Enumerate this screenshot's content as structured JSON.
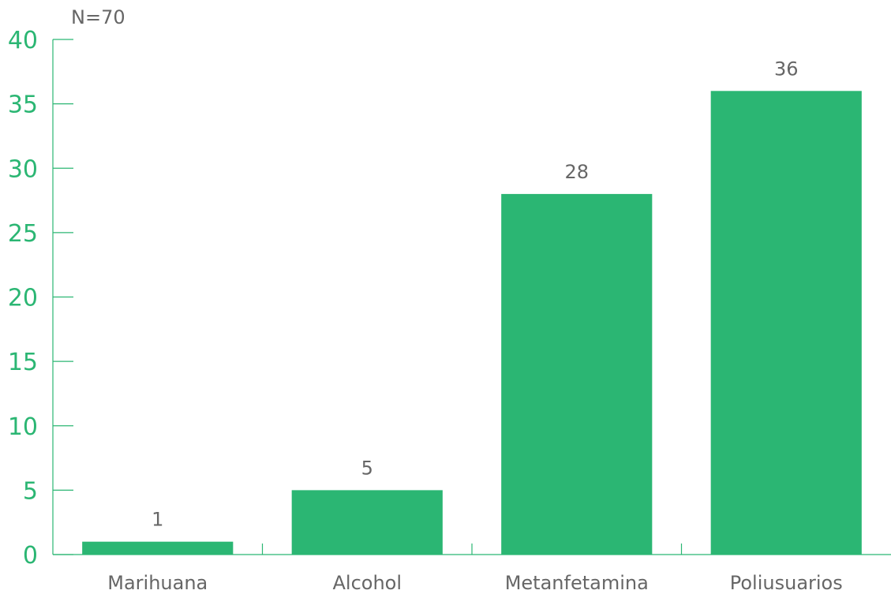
{
  "chart_data": {
    "type": "bar",
    "annotation": "N=70",
    "categories": [
      "Marihuana",
      "Alcohol",
      "Metanfetamina",
      "Poliusuarios"
    ],
    "values": [
      1,
      5,
      28,
      36
    ],
    "data_labels": [
      "1",
      "5",
      "28",
      "36"
    ],
    "y_ticks": [
      "0",
      "5",
      "10",
      "15",
      "20",
      "25",
      "30",
      "35",
      "40"
    ],
    "ylim": [
      0,
      40
    ],
    "grid": false,
    "legend": "none",
    "colors": {
      "bar": "#2bb673",
      "y_tick_text": "#2bb673",
      "axis": "#2bb673",
      "x_tick_text": "#666666",
      "data_label_text": "#666666"
    }
  }
}
